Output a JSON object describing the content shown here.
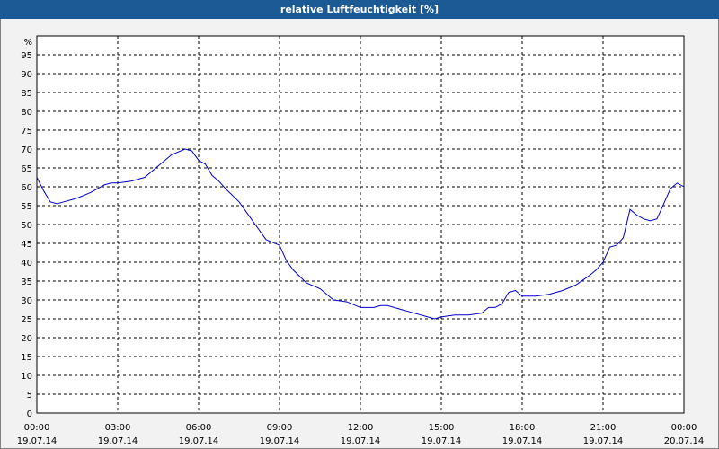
{
  "window": {
    "title": "relative Luftfeuchtigkeit [%]",
    "title_bar_color": "#1c5a95",
    "line_color": "#0000cc"
  },
  "chart_data": {
    "type": "line",
    "title": "relative Luftfeuchtigkeit [%]",
    "y_unit": "%",
    "ylim": [
      0,
      100
    ],
    "y_ticks": [
      0,
      5,
      10,
      15,
      20,
      25,
      30,
      35,
      40,
      45,
      50,
      55,
      60,
      65,
      70,
      75,
      80,
      85,
      90,
      95
    ],
    "x_range_hours": [
      0,
      24
    ],
    "x_ticks": [
      {
        "time": "00:00",
        "date": "19.07.14"
      },
      {
        "time": "03:00",
        "date": "19.07.14"
      },
      {
        "time": "06:00",
        "date": "19.07.14"
      },
      {
        "time": "09:00",
        "date": "19.07.14"
      },
      {
        "time": "12:00",
        "date": "19.07.14"
      },
      {
        "time": "15:00",
        "date": "19.07.14"
      },
      {
        "time": "18:00",
        "date": "19.07.14"
      },
      {
        "time": "21:00",
        "date": "19.07.14"
      },
      {
        "time": "00:00",
        "date": "20.07.14"
      }
    ],
    "grid": true,
    "series": [
      {
        "x": [
          0.0,
          0.25,
          0.5,
          0.75,
          1.0,
          1.5,
          2.0,
          2.5,
          2.75,
          3.0,
          3.5,
          4.0,
          4.5,
          5.0,
          5.5,
          5.75,
          6.0,
          6.25,
          6.5,
          6.75,
          7.0,
          7.5,
          8.0,
          8.5,
          9.0,
          9.25,
          9.5,
          10.0,
          10.5,
          11.0,
          11.5,
          12.0,
          12.25,
          12.5,
          12.75,
          13.0,
          13.5,
          14.0,
          14.5,
          14.75,
          15.0,
          15.5,
          16.0,
          16.5,
          16.75,
          17.0,
          17.25,
          17.5,
          17.75,
          18.0,
          18.5,
          19.0,
          19.5,
          20.0,
          20.5,
          20.75,
          21.0,
          21.25,
          21.5,
          21.75,
          22.0,
          22.25,
          22.5,
          22.75,
          23.0,
          23.25,
          23.5,
          23.75,
          24.0
        ],
        "y": [
          62.5,
          59,
          56,
          55.5,
          56,
          57,
          58.5,
          60.5,
          61,
          61,
          61.5,
          62.5,
          65.5,
          68.5,
          70,
          69.5,
          67,
          66,
          63,
          61.5,
          59.5,
          56,
          51,
          46,
          44.5,
          40.5,
          38,
          34.5,
          33,
          30,
          29.5,
          28,
          28,
          28,
          28.5,
          28.5,
          27.5,
          26.5,
          25.5,
          25,
          25.5,
          26,
          26,
          26.5,
          28,
          28,
          29,
          32,
          32.5,
          31,
          31,
          31.5,
          32.5,
          34,
          36.5,
          38,
          40,
          44,
          44.5,
          46.5,
          54,
          52.5,
          51.5,
          51,
          51.5,
          55.5,
          59.5,
          61,
          60
        ]
      }
    ]
  }
}
